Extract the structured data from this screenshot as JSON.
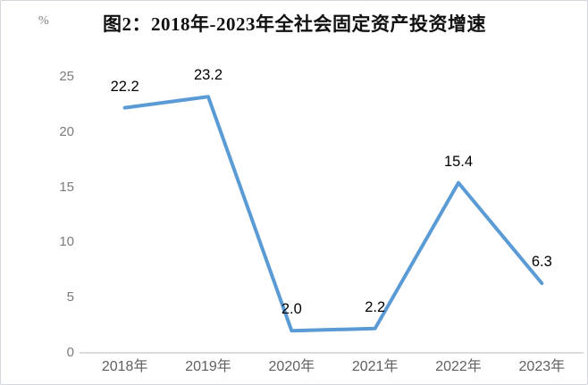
{
  "header": {
    "unit_label": "%",
    "title": "图2：2018年-2023年全社会固定资产投资增速"
  },
  "chart_data": {
    "type": "line",
    "title": "图2：2018年-2023年全社会固定资产投资增速",
    "ylabel": "%",
    "xlabel": "",
    "categories": [
      "2018年",
      "2019年",
      "2020年",
      "2021年",
      "2022年",
      "2023年"
    ],
    "values": [
      22.2,
      23.2,
      2.0,
      2.2,
      15.4,
      6.3
    ],
    "value_labels": [
      "22.2",
      "23.2",
      "2.0",
      "2.2",
      "15.4",
      "6.3"
    ],
    "y_ticks": [
      0,
      5,
      10,
      15,
      20,
      25
    ],
    "ylim": [
      0,
      25
    ],
    "grid": false,
    "legend_position": "none",
    "colors": {
      "line": "#5b9bd5",
      "axis_line": "#cfcfcf",
      "tick_text": "#7b7b7b",
      "x_label_text": "#606060",
      "value_label_text": "#000000",
      "border": "#d3d7dd"
    }
  }
}
